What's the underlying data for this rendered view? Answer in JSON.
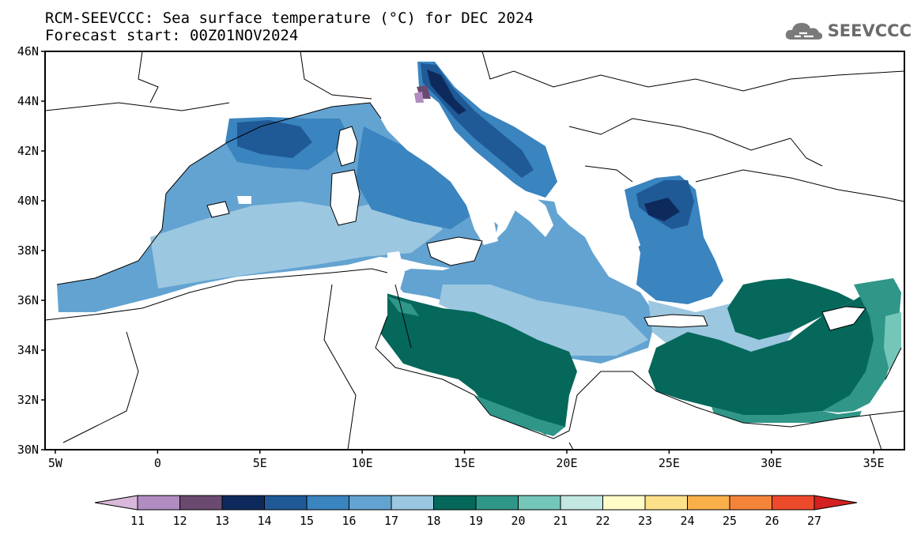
{
  "title": {
    "line1": "RCM-SEEVCCC: Sea surface temperature (°C) for DEC 2024",
    "line2": "Forecast start: 00Z01NOV2024"
  },
  "logo": {
    "text": "SEEVCCC",
    "icon": "cloud-icon"
  },
  "map": {
    "lon_range": [
      -5.5,
      36.5
    ],
    "lat_range": [
      30,
      46
    ],
    "lat_ticks": [
      {
        "value": 46,
        "label": "46N"
      },
      {
        "value": 44,
        "label": "44N"
      },
      {
        "value": 42,
        "label": "42N"
      },
      {
        "value": 40,
        "label": "40N"
      },
      {
        "value": 38,
        "label": "38N"
      },
      {
        "value": 36,
        "label": "36N"
      },
      {
        "value": 34,
        "label": "34N"
      },
      {
        "value": 32,
        "label": "32N"
      },
      {
        "value": 30,
        "label": "30N"
      }
    ],
    "lon_ticks": [
      {
        "value": -5,
        "label": "5W"
      },
      {
        "value": 0,
        "label": "0"
      },
      {
        "value": 5,
        "label": "5E"
      },
      {
        "value": 10,
        "label": "10E"
      },
      {
        "value": 15,
        "label": "15E"
      },
      {
        "value": 20,
        "label": "20E"
      },
      {
        "value": 25,
        "label": "25E"
      },
      {
        "value": 30,
        "label": "30E"
      },
      {
        "value": 35,
        "label": "35E"
      }
    ]
  },
  "colorbar": {
    "labels": [
      "11",
      "12",
      "13",
      "14",
      "15",
      "16",
      "17",
      "18",
      "19",
      "20",
      "21",
      "22",
      "23",
      "24",
      "25",
      "26",
      "27"
    ],
    "low_color": "#d9b8dc",
    "high_color": "#d42020",
    "colors": [
      "#b08cc0",
      "#6b4a70",
      "#0e2a5c",
      "#1f5a97",
      "#3a84bf",
      "#63a3d1",
      "#9cc7e0",
      "#05685a",
      "#2f9688",
      "#74c6b8",
      "#c3e8e2",
      "#fffcc8",
      "#fde08a",
      "#f9b04a",
      "#f4843a",
      "#ed4a2c"
    ]
  }
}
